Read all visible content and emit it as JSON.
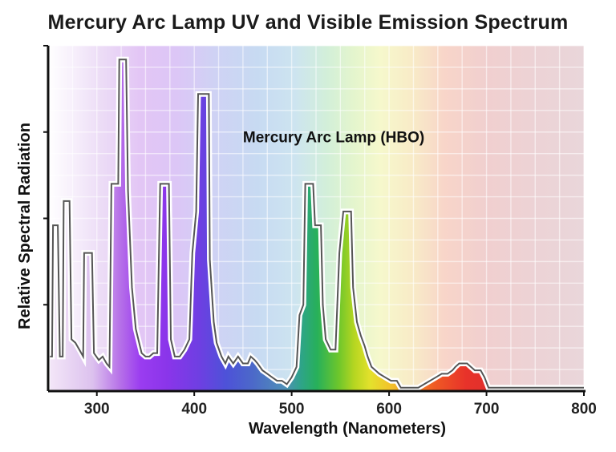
{
  "chart_data": {
    "type": "line",
    "title": "Mercury Arc Lamp UV and Visible Emission Spectrum",
    "xlabel": "Wavelength (Nanometers)",
    "ylabel": "Relative Spectral Radiation",
    "xlim": [
      250,
      800
    ],
    "ylim": [
      0,
      100
    ],
    "x_ticks": [
      "300",
      "400",
      "500",
      "600",
      "700",
      "800"
    ],
    "y_tick_labels_shown": false,
    "grid": true,
    "legend": "none",
    "annotations": [
      {
        "text": "Mercury Arc Lamp (HBO)",
        "x": 450,
        "y": 72
      }
    ],
    "series": [
      {
        "name": "Mercury Arc Lamp (HBO)",
        "points": [
          [
            252,
            10
          ],
          [
            254,
            10
          ],
          [
            255,
            48
          ],
          [
            260,
            48
          ],
          [
            262,
            10
          ],
          [
            265,
            10
          ],
          [
            266,
            55
          ],
          [
            272,
            55
          ],
          [
            274,
            15
          ],
          [
            278,
            14
          ],
          [
            282,
            12
          ],
          [
            286,
            10
          ],
          [
            287,
            40
          ],
          [
            295,
            40
          ],
          [
            297,
            11
          ],
          [
            302,
            9
          ],
          [
            306,
            10
          ],
          [
            310,
            8
          ],
          [
            313,
            7
          ],
          [
            315,
            60
          ],
          [
            322,
            60
          ],
          [
            323,
            96
          ],
          [
            330,
            96
          ],
          [
            332,
            58
          ],
          [
            336,
            30
          ],
          [
            340,
            18
          ],
          [
            346,
            11
          ],
          [
            350,
            10
          ],
          [
            354,
            10
          ],
          [
            358,
            11
          ],
          [
            362,
            11
          ],
          [
            365,
            60
          ],
          [
            374,
            60
          ],
          [
            376,
            15
          ],
          [
            380,
            10
          ],
          [
            385,
            10
          ],
          [
            390,
            12
          ],
          [
            395,
            15
          ],
          [
            398,
            40
          ],
          [
            402,
            52
          ],
          [
            404,
            86
          ],
          [
            415,
            86
          ],
          [
            416,
            38
          ],
          [
            420,
            20
          ],
          [
            423,
            14
          ],
          [
            428,
            10
          ],
          [
            432,
            8
          ],
          [
            435,
            10
          ],
          [
            440,
            8
          ],
          [
            445,
            10
          ],
          [
            450,
            8
          ],
          [
            455,
            8
          ],
          [
            458,
            10
          ],
          [
            462,
            9
          ],
          [
            465,
            8
          ],
          [
            470,
            6
          ],
          [
            475,
            5
          ],
          [
            480,
            4
          ],
          [
            485,
            3
          ],
          [
            490,
            3
          ],
          [
            495,
            2
          ],
          [
            500,
            4
          ],
          [
            505,
            7
          ],
          [
            508,
            22
          ],
          [
            512,
            25
          ],
          [
            514,
            60
          ],
          [
            522,
            60
          ],
          [
            524,
            48
          ],
          [
            530,
            48
          ],
          [
            532,
            25
          ],
          [
            535,
            15
          ],
          [
            540,
            12
          ],
          [
            545,
            12
          ],
          [
            549,
            40
          ],
          [
            553,
            52
          ],
          [
            561,
            52
          ],
          [
            563,
            30
          ],
          [
            567,
            20
          ],
          [
            571,
            16
          ],
          [
            575,
            13
          ],
          [
            578,
            10
          ],
          [
            582,
            7
          ],
          [
            586,
            6
          ],
          [
            590,
            5
          ],
          [
            596,
            4
          ],
          [
            602,
            3
          ],
          [
            608,
            3
          ],
          [
            612,
            1
          ],
          [
            630,
            1
          ],
          [
            636,
            2
          ],
          [
            642,
            3
          ],
          [
            648,
            4
          ],
          [
            654,
            5
          ],
          [
            660,
            5
          ],
          [
            665,
            6
          ],
          [
            668,
            7
          ],
          [
            672,
            8
          ],
          [
            676,
            8
          ],
          [
            680,
            8
          ],
          [
            684,
            7
          ],
          [
            688,
            6
          ],
          [
            694,
            6
          ],
          [
            698,
            4
          ],
          [
            702,
            1
          ],
          [
            800,
            1
          ]
        ]
      }
    ]
  }
}
